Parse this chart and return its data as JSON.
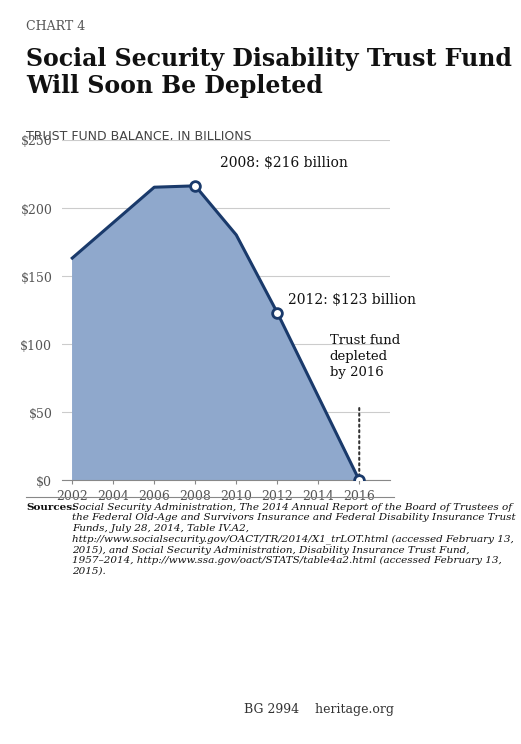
{
  "chart_label": "CHART 4",
  "title": "Social Security Disability Trust Fund\nWill Soon Be Depleted",
  "subtitle": "TRUST FUND BALANCE, IN BILLIONS",
  "years": [
    2002,
    2006,
    2008,
    2010,
    2012,
    2016
  ],
  "values": [
    163,
    215,
    216,
    180,
    123,
    0
  ],
  "fill_color": "#8fa8cc",
  "line_color": "#1a3a6b",
  "line_width": 2.2,
  "marker_years": [
    2008,
    2012,
    2016
  ],
  "marker_values": [
    216,
    123,
    0
  ],
  "marker_labels": [
    "2008: $216 billion",
    "2012: $123 billion",
    ""
  ],
  "annotation_2016": "Trust fund\ndepleted\nby 2016",
  "ylim": [
    0,
    250
  ],
  "yticks": [
    0,
    50,
    100,
    150,
    200,
    250
  ],
  "ytick_labels": [
    "$0",
    "$50",
    "$100",
    "$150",
    "$200",
    "$250"
  ],
  "xticks": [
    2002,
    2004,
    2006,
    2008,
    2010,
    2012,
    2014,
    2016
  ],
  "background_color": "#ffffff",
  "grid_color": "#cccccc",
  "sources_text": "Sources: Social Security Administration, The 2014 Annual Report of the Board of Trustees of the Federal Old-Age and Survivors Insurance and Federal Disability Insurance Trust Funds, July 28, 2014, Table IV.A2, http://www.socialsecurity.gov/OACT/TR/2014/X1_trLOT.html (accessed February 13, 2015), and Social Security Administration, Disability Insurance Trust Fund, 1957–2014, http://www.ssa.gov/oact/STATS/table4a2.html (accessed February 13, 2015).",
  "footer_text": "BG 2994    heritage.org",
  "title_fontsize": 17,
  "chart_label_fontsize": 9,
  "subtitle_fontsize": 9,
  "tick_fontsize": 9,
  "sources_fontsize": 7.5,
  "footer_fontsize": 9
}
